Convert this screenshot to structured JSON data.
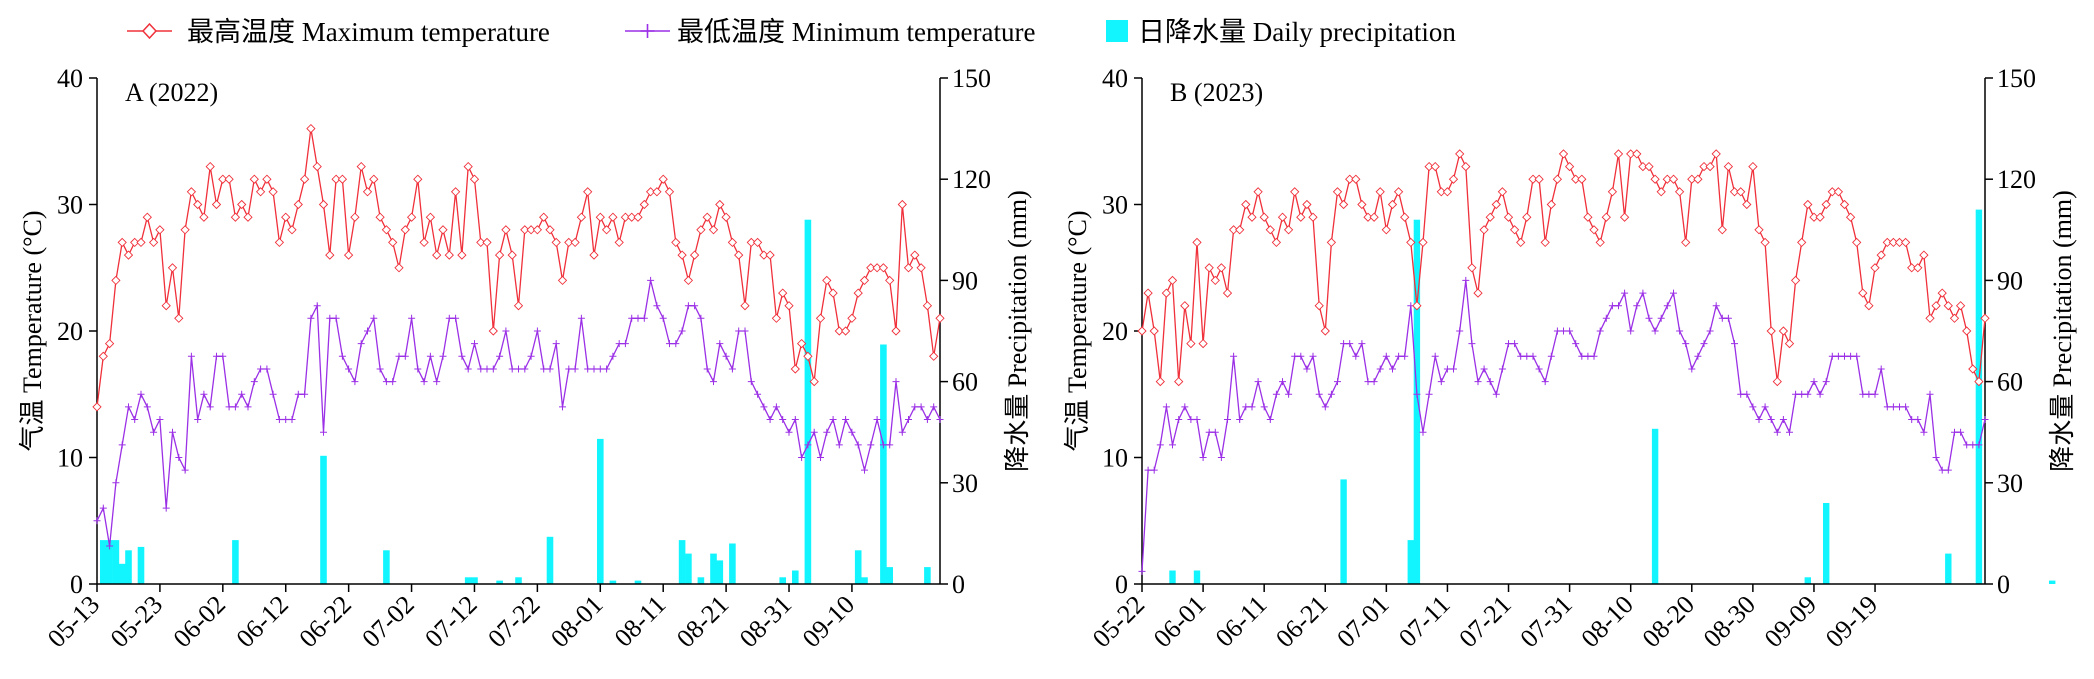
{
  "legend": {
    "max": "最高温度 Maximum temperature",
    "min": "最低温度 Minimum temperature",
    "precip": "日降水量 Daily precipitation"
  },
  "colors": {
    "max": "#f0303a",
    "min": "#9b30e6",
    "precip": "#12f5ff",
    "axis": "#000000"
  },
  "chart_data": [
    {
      "type": "line+bar",
      "title": "A (2022)",
      "ylabel": "气温 Temperature (°C)",
      "y2label": "降水量 Precipitation (mm)",
      "ylim": [
        0,
        40
      ],
      "y2lim": [
        0,
        150
      ],
      "yticks": [
        0,
        10,
        20,
        30,
        40
      ],
      "y2ticks": [
        0,
        30,
        60,
        90,
        120,
        150
      ],
      "xticks": [
        "05-13",
        "05-23",
        "06-02",
        "06-12",
        "06-22",
        "07-02",
        "07-12",
        "07-22",
        "08-01",
        "08-11",
        "08-21",
        "08-31",
        "09-10"
      ],
      "start_date": "2022-05-13",
      "max_temp": [
        14,
        18,
        19,
        24,
        27,
        26,
        27,
        27,
        29,
        27,
        28,
        22,
        25,
        21,
        28,
        31,
        30,
        29,
        33,
        30,
        32,
        32,
        29,
        30,
        29,
        32,
        31,
        32,
        31,
        27,
        29,
        28,
        30,
        32,
        36,
        33,
        30,
        26,
        32,
        32,
        26,
        29,
        33,
        31,
        32,
        29,
        28,
        27,
        25,
        28,
        29,
        32,
        27,
        29,
        26,
        28,
        26,
        31,
        26,
        33,
        32,
        27,
        27,
        20,
        26,
        28,
        26,
        22,
        28,
        28,
        28,
        29,
        28,
        27,
        24,
        27,
        27,
        29,
        31,
        26,
        29,
        28,
        29,
        27,
        29,
        29,
        29,
        30,
        31,
        31,
        32,
        31,
        27,
        26,
        24,
        26,
        28,
        29,
        28,
        30,
        29,
        27,
        26,
        22,
        27,
        27,
        26,
        26,
        21,
        23,
        22,
        17,
        19,
        18,
        16,
        21,
        24,
        23,
        20,
        20,
        21,
        23,
        24,
        25,
        25,
        25,
        24,
        20,
        30,
        25,
        26,
        25,
        22,
        18,
        21
      ],
      "min_temp": [
        5,
        6,
        3,
        8,
        11,
        14,
        13,
        15,
        14,
        12,
        13,
        6,
        12,
        10,
        9,
        18,
        13,
        15,
        14,
        18,
        18,
        14,
        14,
        15,
        14,
        16,
        17,
        17,
        15,
        13,
        13,
        13,
        15,
        15,
        21,
        22,
        12,
        21,
        21,
        18,
        17,
        16,
        19,
        20,
        21,
        17,
        16,
        16,
        18,
        18,
        21,
        17,
        16,
        18,
        16,
        18,
        21,
        21,
        18,
        17,
        19,
        17,
        17,
        17,
        18,
        20,
        17,
        17,
        17,
        18,
        20,
        17,
        17,
        19,
        14,
        17,
        17,
        21,
        17,
        17,
        17,
        17,
        18,
        19,
        19,
        21,
        21,
        21,
        24,
        22,
        21,
        19,
        19,
        20,
        22,
        22,
        21,
        17,
        16,
        19,
        18,
        17,
        20,
        20,
        16,
        15,
        14,
        13,
        14,
        13,
        12,
        13,
        10,
        11,
        12,
        10,
        12,
        13,
        11,
        13,
        12,
        11,
        9,
        11,
        13,
        11,
        11,
        16,
        12,
        13,
        14,
        14,
        13,
        14,
        13
      ],
      "precip": [
        [
          1,
          13
        ],
        [
          2,
          13
        ],
        [
          3,
          13
        ],
        [
          4,
          6
        ],
        [
          5,
          10
        ],
        [
          7,
          11
        ],
        [
          22,
          13
        ],
        [
          36,
          38
        ],
        [
          46,
          10
        ],
        [
          59,
          2
        ],
        [
          60,
          2
        ],
        [
          64,
          1
        ],
        [
          67,
          2
        ],
        [
          72,
          14
        ],
        [
          80,
          43
        ],
        [
          82,
          1
        ],
        [
          86,
          1
        ],
        [
          93,
          13
        ],
        [
          94,
          9
        ],
        [
          96,
          2
        ],
        [
          98,
          9
        ],
        [
          99,
          7
        ],
        [
          101,
          12
        ],
        [
          109,
          2
        ],
        [
          111,
          4
        ],
        [
          113,
          108
        ],
        [
          121,
          10
        ],
        [
          122,
          2
        ],
        [
          125,
          71
        ],
        [
          126,
          5
        ],
        [
          132,
          5
        ]
      ]
    },
    {
      "type": "line+bar",
      "title": "B (2023)",
      "ylabel": "气温 Temperature (°C)",
      "y2label": "降水量 Precipitation (mm)",
      "ylim": [
        0,
        40
      ],
      "y2lim": [
        0,
        150
      ],
      "yticks": [
        0,
        10,
        20,
        30,
        40
      ],
      "y2ticks": [
        0,
        30,
        60,
        90,
        120,
        150
      ],
      "xticks": [
        "05-22",
        "06-01",
        "06-11",
        "06-21",
        "07-01",
        "07-11",
        "07-21",
        "07-31",
        "08-10",
        "08-20",
        "08-30",
        "09-09",
        "09-19"
      ],
      "start_date": "2023-05-22",
      "max_temp": [
        20,
        23,
        20,
        16,
        23,
        24,
        16,
        22,
        19,
        27,
        19,
        25,
        24,
        25,
        23,
        28,
        28,
        30,
        29,
        31,
        29,
        28,
        27,
        29,
        28,
        31,
        29,
        30,
        29,
        22,
        20,
        27,
        31,
        30,
        32,
        32,
        30,
        29,
        29,
        31,
        28,
        30,
        31,
        29,
        27,
        22,
        27,
        33,
        33,
        31,
        31,
        32,
        34,
        33,
        25,
        23,
        28,
        29,
        30,
        31,
        29,
        28,
        27,
        29,
        32,
        32,
        27,
        30,
        32,
        34,
        33,
        32,
        32,
        29,
        28,
        27,
        29,
        31,
        34,
        29,
        34,
        34,
        33,
        33,
        32,
        31,
        32,
        32,
        31,
        27,
        32,
        32,
        33,
        33,
        34,
        28,
        33,
        31,
        31,
        30,
        33,
        28,
        27,
        20,
        16,
        20,
        19,
        24,
        27,
        30,
        29,
        29,
        30,
        31,
        31,
        30,
        29,
        27,
        23,
        22,
        25,
        26,
        27,
        27,
        27,
        27,
        25,
        25,
        26,
        21,
        22,
        23,
        22,
        21,
        22,
        20,
        17,
        16,
        21
      ],
      "min_temp": [
        1,
        9,
        9,
        11,
        14,
        11,
        13,
        14,
        13,
        13,
        10,
        12,
        12,
        10,
        13,
        18,
        13,
        14,
        14,
        16,
        14,
        13,
        15,
        16,
        15,
        18,
        18,
        17,
        18,
        15,
        14,
        15,
        16,
        19,
        19,
        18,
        19,
        16,
        16,
        17,
        18,
        17,
        18,
        18,
        22,
        15,
        12,
        15,
        18,
        16,
        17,
        17,
        20,
        24,
        19,
        16,
        17,
        16,
        15,
        17,
        19,
        19,
        18,
        18,
        18,
        17,
        16,
        18,
        20,
        20,
        20,
        19,
        18,
        18,
        18,
        20,
        21,
        22,
        22,
        23,
        20,
        22,
        23,
        21,
        20,
        21,
        22,
        23,
        20,
        19,
        17,
        18,
        19,
        20,
        22,
        21,
        21,
        19,
        15,
        15,
        14,
        13,
        14,
        13,
        12,
        13,
        12,
        15,
        15,
        15,
        16,
        15,
        16,
        18,
        18,
        18,
        18,
        18,
        15,
        15,
        15,
        17,
        14,
        14,
        14,
        14,
        13,
        13,
        12,
        15,
        10,
        9,
        9,
        12,
        12,
        11,
        11,
        11,
        13
      ],
      "precip": [
        [
          5,
          4
        ],
        [
          9,
          4
        ],
        [
          33,
          31
        ],
        [
          44,
          13
        ],
        [
          45,
          108
        ],
        [
          84,
          46
        ],
        [
          109,
          2
        ],
        [
          112,
          24
        ],
        [
          132,
          9
        ],
        [
          137,
          111
        ],
        [
          149,
          1
        ]
      ]
    }
  ]
}
